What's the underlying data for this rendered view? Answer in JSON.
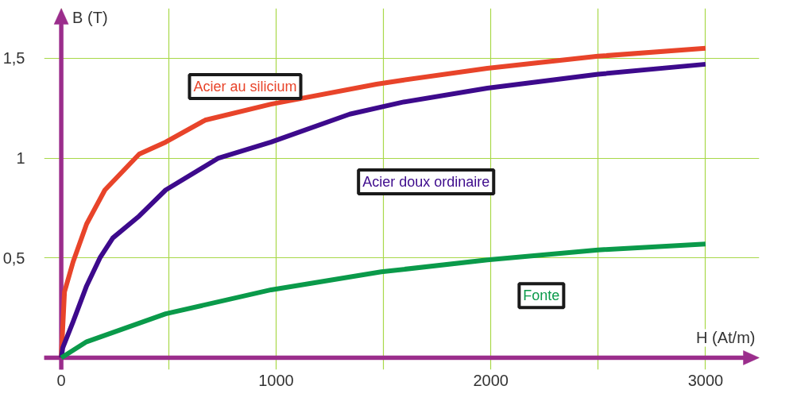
{
  "chart_data": {
    "type": "line",
    "xlabel": "H (At/m)",
    "ylabel": "B (T)",
    "xlim": [
      -80,
      3250
    ],
    "ylim": [
      -0.06,
      1.75
    ],
    "xticks": [
      0,
      {
        "value": 500,
        "label": null
      },
      1000,
      {
        "value": 1500,
        "label": null
      },
      2000,
      {
        "value": 2500,
        "label": null
      },
      3000
    ],
    "yticks": [
      {
        "value": 0,
        "label": null
      },
      {
        "value": 0.5,
        "label": "0,5"
      },
      1,
      {
        "value": 1.5,
        "label": "1,5"
      }
    ],
    "grid": true,
    "marker": "none",
    "line_style": "solid",
    "series": [
      {
        "name": "Acier au silicium",
        "color": "#e8442a",
        "x": [
          0,
          15,
          55,
          118,
          203,
          363,
          486,
          670,
          977,
          1468,
          1590,
          1984,
          2499,
          3000
        ],
        "values": [
          0,
          0.33,
          0.48,
          0.67,
          0.84,
          1.02,
          1.08,
          1.19,
          1.27,
          1.37,
          1.39,
          1.45,
          1.51,
          1.55
        ]
      },
      {
        "name": "Acier doux ordinaire",
        "color": "#3d0a8c",
        "x": [
          0,
          7,
          55,
          118,
          180,
          240,
          363,
          486,
          732,
          977,
          1343,
          1590,
          1984,
          2499,
          3000
        ],
        "values": [
          0,
          0.05,
          0.18,
          0.36,
          0.5,
          0.6,
          0.71,
          0.84,
          1.0,
          1.08,
          1.22,
          1.28,
          1.35,
          1.42,
          1.47
        ]
      },
      {
        "name": "Fonte",
        "color": "#0a9a4a",
        "x": [
          0,
          118,
          486,
          977,
          1490,
          1984,
          2499,
          3000
        ],
        "values": [
          0,
          0.08,
          0.22,
          0.34,
          0.43,
          0.49,
          0.54,
          0.57
        ]
      }
    ]
  }
}
